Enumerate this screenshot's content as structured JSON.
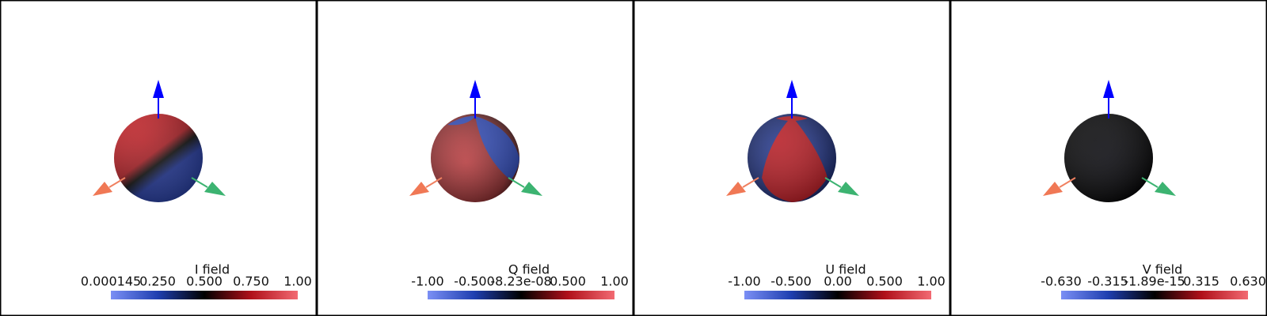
{
  "panels": [
    {
      "title": "I field",
      "ticks": [
        "0.000145",
        "0.250",
        "0.500",
        "0.750",
        "1.00"
      ]
    },
    {
      "title": "Q field",
      "ticks": [
        "-1.00",
        "-0.500",
        "-8.23e-08",
        "0.500",
        "1.00"
      ]
    },
    {
      "title": "U field",
      "ticks": [
        "-1.00",
        "-0.500",
        "0.00",
        "0.500",
        "1.00"
      ]
    },
    {
      "title": "V field",
      "ticks": [
        "-0.630",
        "-0.315",
        "-1.89e-15",
        "0.315",
        "0.630"
      ]
    }
  ]
}
